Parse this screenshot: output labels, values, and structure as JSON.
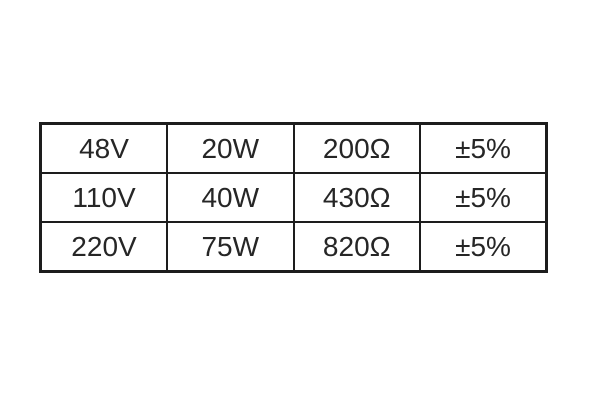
{
  "table": {
    "rows": [
      [
        "48V",
        "20W",
        "200Ω",
        "±5%"
      ],
      [
        "110V",
        "40W",
        "430Ω",
        "±5%"
      ],
      [
        "220V",
        "75W",
        "820Ω",
        "±5%"
      ]
    ]
  },
  "colors": {
    "border": "#1d1d1d",
    "text": "#262626",
    "background": "#ffffff"
  }
}
